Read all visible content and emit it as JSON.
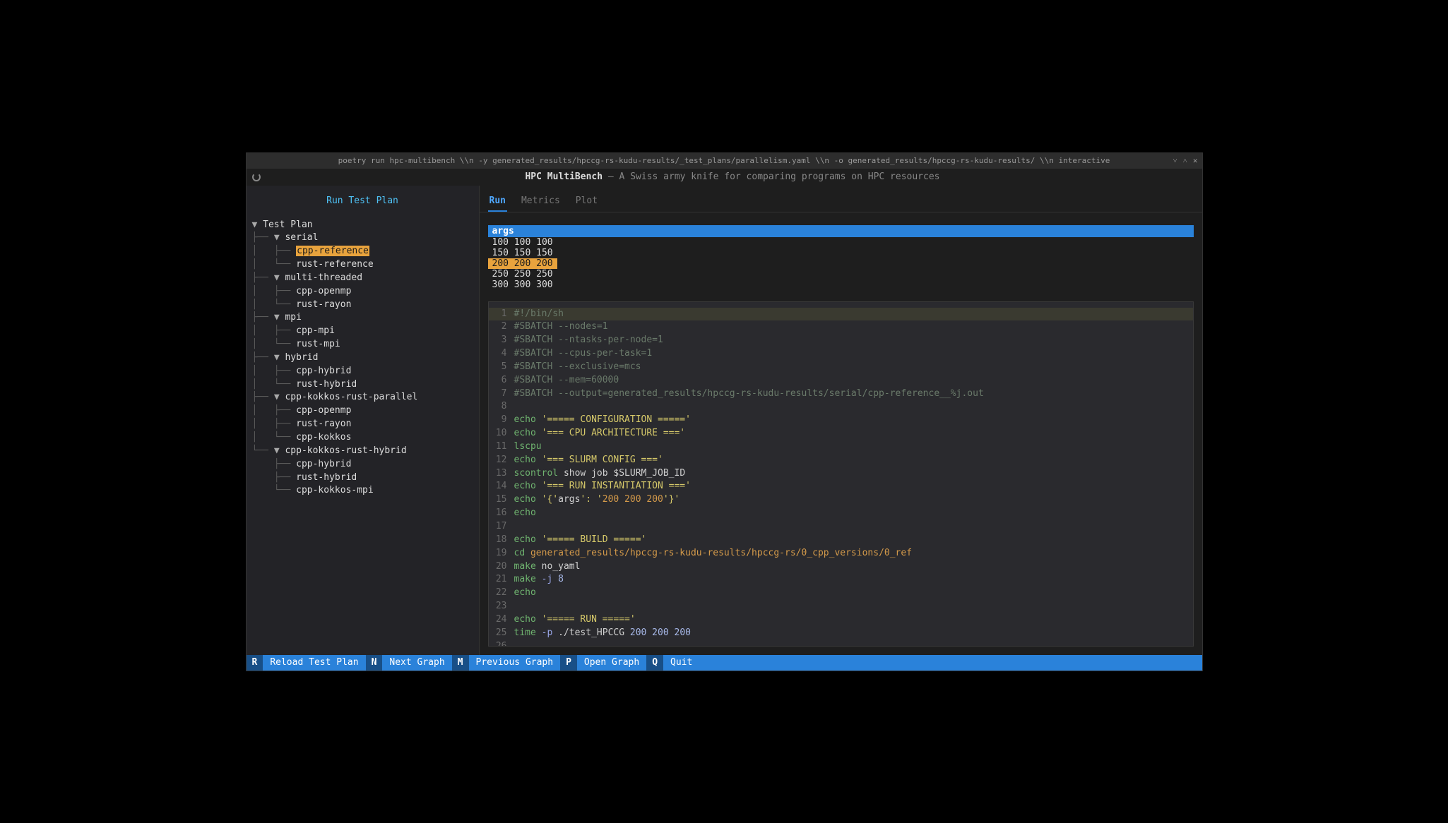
{
  "titlebar": {
    "text": "poetry run hpc-multibench \\\\n -y generated_results/hpccg-rs-kudu-results/_test_plans/parallelism.yaml \\\\n -o generated_results/hpccg-rs-kudu-results/ \\\\n interactive"
  },
  "header": {
    "title": "HPC MultiBench",
    "dash": " — ",
    "subtitle": "A Swiss army knife for comparing programs on HPC resources"
  },
  "sidebar": {
    "title": "Run Test Plan",
    "tree": [
      {
        "depth": 0,
        "caret": "▼",
        "label": "Test Plan",
        "selected": false,
        "clickable": true
      },
      {
        "depth": 1,
        "caret": "▼",
        "label": "serial",
        "selected": false,
        "clickable": true
      },
      {
        "depth": 2,
        "caret": "",
        "label": "cpp-reference",
        "selected": true,
        "clickable": true
      },
      {
        "depth": 2,
        "caret": "",
        "label": "rust-reference",
        "selected": false,
        "clickable": true
      },
      {
        "depth": 1,
        "caret": "▼",
        "label": "multi-threaded",
        "selected": false,
        "clickable": true
      },
      {
        "depth": 2,
        "caret": "",
        "label": "cpp-openmp",
        "selected": false,
        "clickable": true
      },
      {
        "depth": 2,
        "caret": "",
        "label": "rust-rayon",
        "selected": false,
        "clickable": true
      },
      {
        "depth": 1,
        "caret": "▼",
        "label": "mpi",
        "selected": false,
        "clickable": true
      },
      {
        "depth": 2,
        "caret": "",
        "label": "cpp-mpi",
        "selected": false,
        "clickable": true
      },
      {
        "depth": 2,
        "caret": "",
        "label": "rust-mpi",
        "selected": false,
        "clickable": true
      },
      {
        "depth": 1,
        "caret": "▼",
        "label": "hybrid",
        "selected": false,
        "clickable": true
      },
      {
        "depth": 2,
        "caret": "",
        "label": "cpp-hybrid",
        "selected": false,
        "clickable": true
      },
      {
        "depth": 2,
        "caret": "",
        "label": "rust-hybrid",
        "selected": false,
        "clickable": true
      },
      {
        "depth": 1,
        "caret": "▼",
        "label": "cpp-kokkos-rust-parallel",
        "selected": false,
        "clickable": true
      },
      {
        "depth": 2,
        "caret": "",
        "label": "cpp-openmp",
        "selected": false,
        "clickable": true
      },
      {
        "depth": 2,
        "caret": "",
        "label": "rust-rayon",
        "selected": false,
        "clickable": true
      },
      {
        "depth": 2,
        "caret": "",
        "label": "cpp-kokkos",
        "selected": false,
        "clickable": true
      },
      {
        "depth": 1,
        "caret": "▼",
        "label": "cpp-kokkos-rust-hybrid",
        "selected": false,
        "clickable": true
      },
      {
        "depth": 2,
        "caret": "",
        "label": "cpp-hybrid",
        "selected": false,
        "clickable": true
      },
      {
        "depth": 2,
        "caret": "",
        "label": "rust-hybrid",
        "selected": false,
        "clickable": true
      },
      {
        "depth": 2,
        "caret": "",
        "label": "cpp-kokkos-mpi",
        "selected": false,
        "clickable": true
      }
    ]
  },
  "tabs": [
    {
      "label": "Run",
      "active": true
    },
    {
      "label": "Metrics",
      "active": false
    },
    {
      "label": "Plot",
      "active": false
    }
  ],
  "args": {
    "header": "args",
    "rows": [
      {
        "text": "100 100 100",
        "selected": false
      },
      {
        "text": "150 150 150",
        "selected": false
      },
      {
        "text": "200 200 200",
        "selected": true
      },
      {
        "text": "250 250 250",
        "selected": false
      },
      {
        "text": "300 300 300",
        "selected": false
      }
    ]
  },
  "code": {
    "highlight_line": 1,
    "lines": [
      {
        "n": 1,
        "tokens": [
          {
            "t": "#!/bin/sh",
            "c": "tok-comment"
          }
        ]
      },
      {
        "n": 2,
        "tokens": [
          {
            "t": "#SBATCH --nodes=1",
            "c": "tok-comment"
          }
        ]
      },
      {
        "n": 3,
        "tokens": [
          {
            "t": "#SBATCH --ntasks-per-node=1",
            "c": "tok-comment"
          }
        ]
      },
      {
        "n": 4,
        "tokens": [
          {
            "t": "#SBATCH --cpus-per-task=1",
            "c": "tok-comment"
          }
        ]
      },
      {
        "n": 5,
        "tokens": [
          {
            "t": "#SBATCH --exclusive=mcs",
            "c": "tok-comment"
          }
        ]
      },
      {
        "n": 6,
        "tokens": [
          {
            "t": "#SBATCH --mem=60000",
            "c": "tok-comment"
          }
        ]
      },
      {
        "n": 7,
        "tokens": [
          {
            "t": "#SBATCH --output=generated_results/hpccg-rs-kudu-results/serial/cpp-reference__%j.out",
            "c": "tok-comment"
          }
        ]
      },
      {
        "n": 8,
        "tokens": []
      },
      {
        "n": 9,
        "tokens": [
          {
            "t": "echo ",
            "c": "tok-cmd"
          },
          {
            "t": "'===== CONFIGURATION ====='",
            "c": "tok-str-y"
          }
        ]
      },
      {
        "n": 10,
        "tokens": [
          {
            "t": "echo ",
            "c": "tok-cmd"
          },
          {
            "t": "'=== CPU ARCHITECTURE ==='",
            "c": "tok-str-y"
          }
        ]
      },
      {
        "n": 11,
        "tokens": [
          {
            "t": "lscpu",
            "c": "tok-cmd"
          }
        ]
      },
      {
        "n": 12,
        "tokens": [
          {
            "t": "echo ",
            "c": "tok-cmd"
          },
          {
            "t": "'=== SLURM CONFIG ==='",
            "c": "tok-str-y"
          }
        ]
      },
      {
        "n": 13,
        "tokens": [
          {
            "t": "scontrol ",
            "c": "tok-cmd"
          },
          {
            "t": "show job ",
            "c": "tok-arg"
          },
          {
            "t": "$SLURM_JOB_ID",
            "c": "tok-var"
          }
        ]
      },
      {
        "n": 14,
        "tokens": [
          {
            "t": "echo ",
            "c": "tok-cmd"
          },
          {
            "t": "'=== RUN INSTANTIATION ==='",
            "c": "tok-str-y"
          }
        ]
      },
      {
        "n": 15,
        "tokens": [
          {
            "t": "echo ",
            "c": "tok-cmd"
          },
          {
            "t": "'{'",
            "c": "tok-str-y"
          },
          {
            "t": "args",
            "c": "tok-arg"
          },
          {
            "t": "': '",
            "c": "tok-str-y"
          },
          {
            "t": "200 200 200",
            "c": "tok-str-o"
          },
          {
            "t": "'}'",
            "c": "tok-str-y"
          }
        ]
      },
      {
        "n": 16,
        "tokens": [
          {
            "t": "echo",
            "c": "tok-cmd"
          }
        ]
      },
      {
        "n": 17,
        "tokens": []
      },
      {
        "n": 18,
        "tokens": [
          {
            "t": "echo ",
            "c": "tok-cmd"
          },
          {
            "t": "'===== BUILD ====='",
            "c": "tok-str-y"
          }
        ]
      },
      {
        "n": 19,
        "tokens": [
          {
            "t": "cd ",
            "c": "tok-cmd"
          },
          {
            "t": "generated_results/hpccg-rs-kudu-results/hpccg-rs/0_cpp_versions/0_ref",
            "c": "tok-str-o"
          }
        ]
      },
      {
        "n": 20,
        "tokens": [
          {
            "t": "make ",
            "c": "tok-cmd"
          },
          {
            "t": "no_yaml",
            "c": "tok-arg"
          }
        ]
      },
      {
        "n": 21,
        "tokens": [
          {
            "t": "make ",
            "c": "tok-cmd"
          },
          {
            "t": "-j ",
            "c": "tok-flag"
          },
          {
            "t": "8",
            "c": "tok-num"
          }
        ]
      },
      {
        "n": 22,
        "tokens": [
          {
            "t": "echo",
            "c": "tok-cmd"
          }
        ]
      },
      {
        "n": 23,
        "tokens": []
      },
      {
        "n": 24,
        "tokens": [
          {
            "t": "echo ",
            "c": "tok-cmd"
          },
          {
            "t": "'===== RUN ====='",
            "c": "tok-str-y"
          }
        ]
      },
      {
        "n": 25,
        "tokens": [
          {
            "t": "time ",
            "c": "tok-cmd"
          },
          {
            "t": "-p ",
            "c": "tok-flag"
          },
          {
            "t": "./test_HPCCG ",
            "c": "tok-arg"
          },
          {
            "t": "200 200 200",
            "c": "tok-num"
          }
        ]
      },
      {
        "n": 26,
        "tokens": []
      }
    ]
  },
  "statusbar": [
    {
      "key": "R",
      "label": "Reload Test Plan"
    },
    {
      "key": "N",
      "label": "Next Graph"
    },
    {
      "key": "M",
      "label": "Previous Graph"
    },
    {
      "key": "P",
      "label": "Open Graph"
    },
    {
      "key": "Q",
      "label": "Quit"
    }
  ],
  "colors": {
    "bg": "#1e1e1e",
    "sidebar_bg": "#232327",
    "accent": "#2a82da",
    "highlight": "#e8a33d",
    "tree_guide": "#5a5a5a",
    "code_bg": "#2a2a2e"
  }
}
